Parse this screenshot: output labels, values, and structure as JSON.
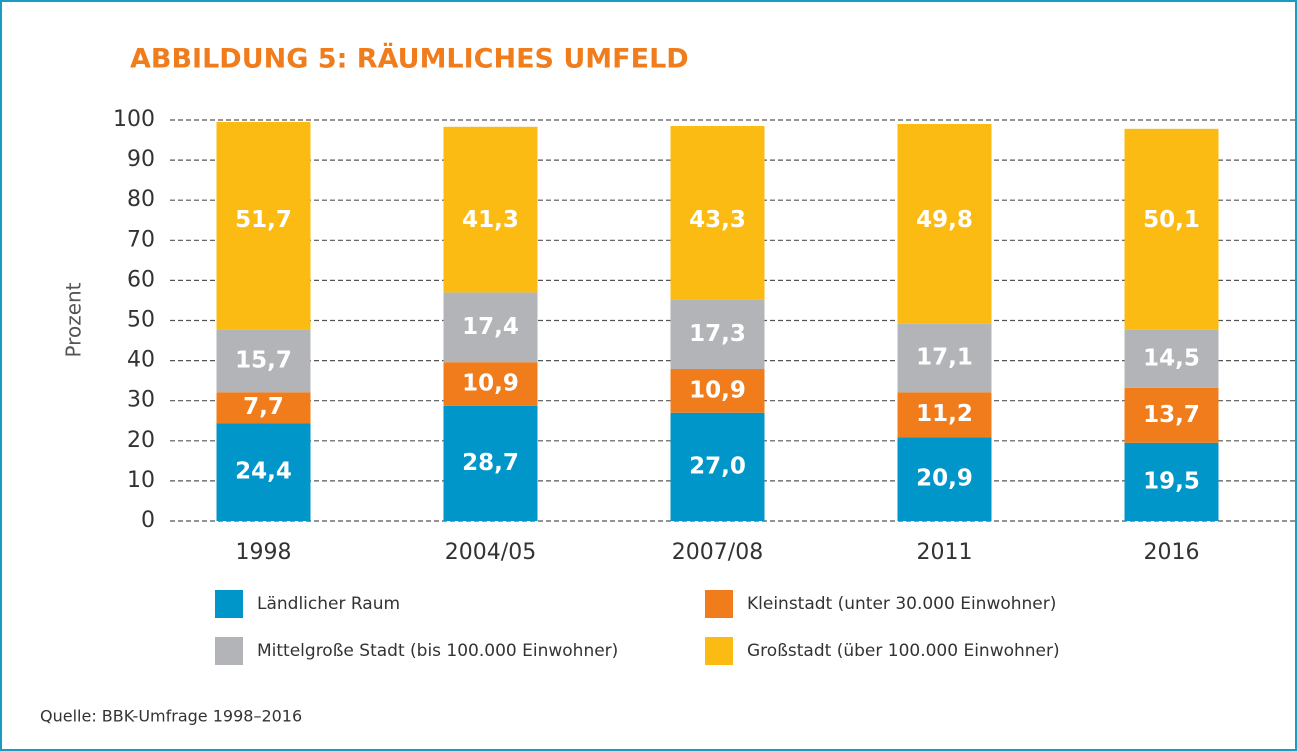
{
  "chart_data": {
    "type": "stacked_bar",
    "title": "ABBILDUNG 5: RÄUMLICHES UMFELD",
    "y_label": "Prozent",
    "source": "Quelle: BBK-Umfrage 1998–2016",
    "categories": [
      "1998",
      "2004/05",
      "2007/08",
      "2011",
      "2016"
    ],
    "series": [
      {
        "name": "Ländlicher Raum",
        "color": "#0096c9",
        "values": [
          24.4,
          28.7,
          27.0,
          20.9,
          19.5
        ],
        "value_labels": [
          "24,4",
          "28,7",
          "27,0",
          "20,9",
          "19,5"
        ]
      },
      {
        "name": "Kleinstadt (unter 30.000 Einwohner)",
        "color": "#f07c1c",
        "values": [
          7.7,
          10.9,
          10.9,
          11.2,
          13.7
        ],
        "value_labels": [
          "7,7",
          "10,9",
          "10,9",
          "11,2",
          "13,7"
        ]
      },
      {
        "name": "Mittelgroße Stadt (bis 100.000 Einwohner)",
        "color": "#b2b4b7",
        "values": [
          15.7,
          17.4,
          17.3,
          17.1,
          14.5
        ],
        "value_labels": [
          "15,7",
          "17,4",
          "17,3",
          "17,1",
          "14,5"
        ]
      },
      {
        "name": "Großstadt (über 100.000 Einwohner)",
        "color": "#fbbb12",
        "values": [
          51.7,
          41.3,
          43.3,
          49.8,
          50.1
        ],
        "value_labels": [
          "51,7",
          "41,3",
          "43,3",
          "49,8",
          "50,1"
        ]
      }
    ],
    "ylim": [
      0,
      100
    ],
    "yticks": [
      0,
      10,
      20,
      30,
      40,
      50,
      60,
      70,
      80,
      90,
      100
    ],
    "grid": true
  }
}
